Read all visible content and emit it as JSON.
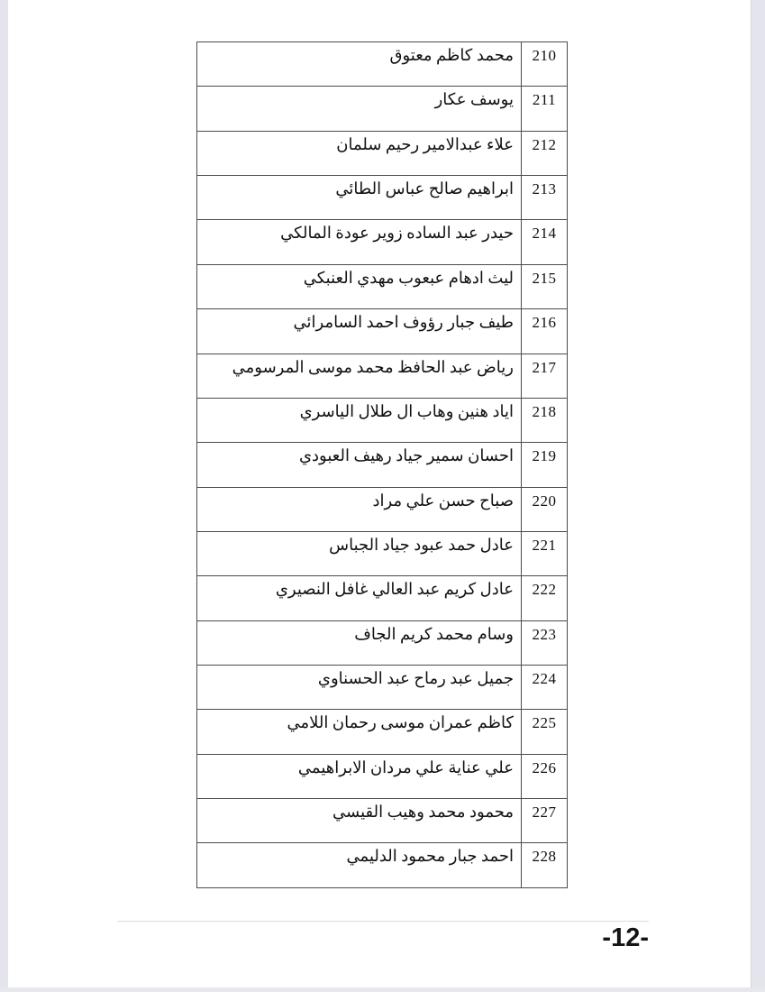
{
  "document": {
    "page_number": "-12-"
  },
  "table": {
    "rows": [
      {
        "no": "210",
        "name": "محمد كاظم معتوق"
      },
      {
        "no": "211",
        "name": "يوسف عكار"
      },
      {
        "no": "212",
        "name": "علاء عبدالامير رحيم سلمان"
      },
      {
        "no": "213",
        "name": "ابراهيم صالح عباس الطائي"
      },
      {
        "no": "214",
        "name": "حيدر عبد الساده زوير عودة المالكي"
      },
      {
        "no": "215",
        "name": "ليث ادهام عبعوب مهدي العنبكي"
      },
      {
        "no": "216",
        "name": "طيف جبار رؤوف احمد السامرائي"
      },
      {
        "no": "217",
        "name": "رياض عبد الحافظ محمد موسى المرسومي"
      },
      {
        "no": "218",
        "name": "اياد هنين وهاب ال طلال الياسري"
      },
      {
        "no": "219",
        "name": "احسان سمير جياد رهيف العبودي"
      },
      {
        "no": "220",
        "name": "صباح حسن علي مراد"
      },
      {
        "no": "221",
        "name": "عادل حمد عبود جياد الجباس"
      },
      {
        "no": "222",
        "name": "عادل كريم عبد العالي غافل النصيري"
      },
      {
        "no": "223",
        "name": "وسام محمد كريم الجاف"
      },
      {
        "no": "224",
        "name": "جميل عبد رماح عبد الحسناوي"
      },
      {
        "no": "225",
        "name": "كاظم عمران موسى رحمان اللامي"
      },
      {
        "no": "226",
        "name": "علي عناية علي مردان الابراهيمي"
      },
      {
        "no": "227",
        "name": "محمود محمد وهيب القيسي"
      },
      {
        "no": "228",
        "name": "احمد جبار محمود الدليمي"
      }
    ]
  }
}
